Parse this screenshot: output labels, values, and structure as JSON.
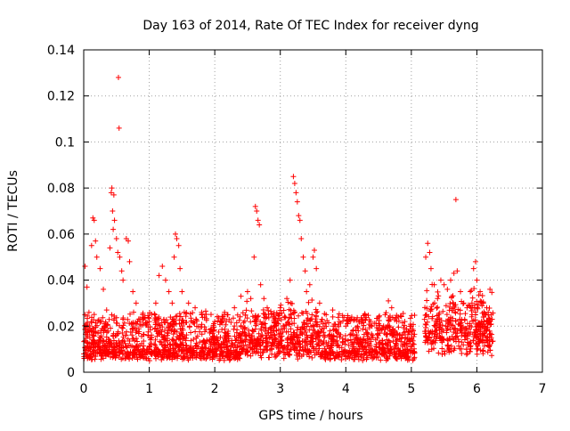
{
  "chart_data": {
    "type": "scatter",
    "title": "Day 163 of 2014, Rate Of TEC Index for receiver dyng",
    "xlabel": "GPS time / hours",
    "ylabel": "ROTI / TECUs",
    "xlim": [
      0,
      7
    ],
    "ylim": [
      0,
      0.14
    ],
    "xticks": [
      0,
      1,
      2,
      3,
      4,
      5,
      6,
      7
    ],
    "xtick_labels": [
      "0",
      "1",
      "2",
      "3",
      "4",
      "5",
      "6",
      "7"
    ],
    "yticks": [
      0,
      0.02,
      0.04,
      0.06,
      0.08,
      0.1,
      0.12,
      0.14
    ],
    "ytick_labels": [
      "0",
      "0.02",
      "0.04",
      "0.06",
      "0.08",
      "0.1",
      "0.12",
      "0.14"
    ],
    "grid": true,
    "marker": "+",
    "color": "#ff0000",
    "data_gap": [
      5.05,
      5.2
    ],
    "series": [
      {
        "name": "ROTI",
        "points": [
          [
            0.02,
            0.046
          ],
          [
            0.05,
            0.037
          ],
          [
            0.08,
            0.026
          ],
          [
            0.12,
            0.055
          ],
          [
            0.14,
            0.067
          ],
          [
            0.16,
            0.066
          ],
          [
            0.18,
            0.057
          ],
          [
            0.2,
            0.05
          ],
          [
            0.25,
            0.045
          ],
          [
            0.3,
            0.036
          ],
          [
            0.35,
            0.027
          ],
          [
            0.4,
            0.054
          ],
          [
            0.42,
            0.078
          ],
          [
            0.43,
            0.08
          ],
          [
            0.44,
            0.07
          ],
          [
            0.45,
            0.062
          ],
          [
            0.46,
            0.077
          ],
          [
            0.47,
            0.066
          ],
          [
            0.5,
            0.058
          ],
          [
            0.52,
            0.052
          ],
          [
            0.53,
            0.128
          ],
          [
            0.54,
            0.106
          ],
          [
            0.55,
            0.05
          ],
          [
            0.58,
            0.044
          ],
          [
            0.6,
            0.04
          ],
          [
            0.65,
            0.058
          ],
          [
            0.68,
            0.057
          ],
          [
            0.7,
            0.048
          ],
          [
            0.75,
            0.035
          ],
          [
            0.8,
            0.03
          ],
          [
            0.9,
            0.025
          ],
          [
            1.0,
            0.022
          ],
          [
            1.1,
            0.03
          ],
          [
            1.15,
            0.042
          ],
          [
            1.2,
            0.046
          ],
          [
            1.25,
            0.04
          ],
          [
            1.3,
            0.035
          ],
          [
            1.35,
            0.03
          ],
          [
            1.38,
            0.05
          ],
          [
            1.4,
            0.06
          ],
          [
            1.42,
            0.058
          ],
          [
            1.45,
            0.055
          ],
          [
            1.47,
            0.045
          ],
          [
            1.5,
            0.035
          ],
          [
            1.6,
            0.03
          ],
          [
            1.7,
            0.028
          ],
          [
            1.8,
            0.025
          ],
          [
            2.0,
            0.022
          ],
          [
            2.2,
            0.025
          ],
          [
            2.3,
            0.028
          ],
          [
            2.4,
            0.033
          ],
          [
            2.5,
            0.035
          ],
          [
            2.55,
            0.032
          ],
          [
            2.6,
            0.05
          ],
          [
            2.62,
            0.072
          ],
          [
            2.64,
            0.07
          ],
          [
            2.66,
            0.066
          ],
          [
            2.68,
            0.064
          ],
          [
            2.7,
            0.038
          ],
          [
            2.75,
            0.032
          ],
          [
            2.8,
            0.028
          ],
          [
            2.9,
            0.025
          ],
          [
            3.0,
            0.028
          ],
          [
            3.1,
            0.032
          ],
          [
            3.15,
            0.04
          ],
          [
            3.2,
            0.085
          ],
          [
            3.22,
            0.082
          ],
          [
            3.24,
            0.078
          ],
          [
            3.26,
            0.074
          ],
          [
            3.28,
            0.068
          ],
          [
            3.3,
            0.066
          ],
          [
            3.32,
            0.058
          ],
          [
            3.35,
            0.05
          ],
          [
            3.38,
            0.044
          ],
          [
            3.4,
            0.035
          ],
          [
            3.45,
            0.038
          ],
          [
            3.5,
            0.05
          ],
          [
            3.52,
            0.053
          ],
          [
            3.55,
            0.045
          ],
          [
            3.6,
            0.03
          ],
          [
            3.7,
            0.025
          ],
          [
            3.8,
            0.027
          ],
          [
            3.9,
            0.022
          ],
          [
            4.0,
            0.02
          ],
          [
            4.2,
            0.022
          ],
          [
            4.4,
            0.02
          ],
          [
            4.6,
            0.025
          ],
          [
            4.65,
            0.031
          ],
          [
            4.7,
            0.028
          ],
          [
            4.8,
            0.024
          ],
          [
            4.9,
            0.022
          ],
          [
            5.0,
            0.02
          ],
          [
            5.03,
            0.018
          ],
          [
            5.22,
            0.05
          ],
          [
            5.25,
            0.056
          ],
          [
            5.28,
            0.052
          ],
          [
            5.3,
            0.045
          ],
          [
            5.35,
            0.038
          ],
          [
            5.4,
            0.032
          ],
          [
            5.45,
            0.04
          ],
          [
            5.5,
            0.038
          ],
          [
            5.55,
            0.036
          ],
          [
            5.6,
            0.04
          ],
          [
            5.65,
            0.043
          ],
          [
            5.68,
            0.075
          ],
          [
            5.7,
            0.044
          ],
          [
            5.75,
            0.035
          ],
          [
            5.8,
            0.03
          ],
          [
            5.85,
            0.028
          ],
          [
            5.9,
            0.035
          ],
          [
            5.95,
            0.045
          ],
          [
            5.98,
            0.048
          ],
          [
            6.0,
            0.04
          ],
          [
            6.05,
            0.035
          ],
          [
            6.1,
            0.03
          ],
          [
            6.15,
            0.028
          ],
          [
            6.2,
            0.036
          ],
          [
            6.22,
            0.025
          ]
        ]
      }
    ]
  }
}
